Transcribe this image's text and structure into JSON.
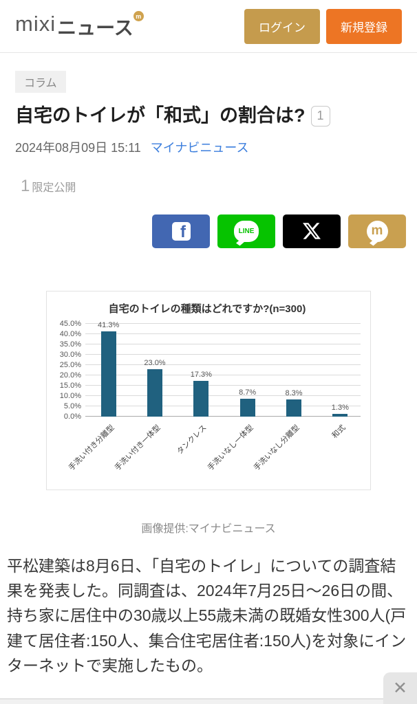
{
  "header": {
    "logo_mixi": "mixi",
    "logo_news": "ニュース",
    "logo_badge": "m",
    "login_label": "ログイン",
    "signup_label": "新規登録"
  },
  "article": {
    "category": "コラム",
    "title": "自宅のトイレが「和式」の割合は?",
    "title_badge": "1",
    "date": "2024年08月09日 15:11",
    "source": "マイナビニュース",
    "limited_count": "1",
    "limited_label": "限定公開",
    "caption": "画像提供:マイナビニュース",
    "body": "平松建築は8月6日、「自宅のトイレ」についての調査結果を発表した。同調査は、2024年7月25日〜26日の間、持ち家に居住中の30歳以上55歳未満の既婚女性300人(戸建て居住者:150人、集合住宅居住者:150人)を対象にインターネットで実施したもの。"
  },
  "share": {
    "facebook_icon": "f",
    "line_icon": "LINE",
    "x_icon": "X",
    "mixi_icon": "m"
  },
  "chart_data": {
    "type": "bar",
    "title": "自宅のトイレの種類はどれですか?(n=300)",
    "categories": [
      "手洗い付き分離型",
      "手洗い付き一体型",
      "タンクレス",
      "手洗いなし一体型",
      "手洗いなし分離型",
      "和式"
    ],
    "values": [
      41.3,
      23.0,
      17.3,
      8.7,
      8.3,
      1.3
    ],
    "value_labels": [
      "41.3%",
      "23.0%",
      "17.3%",
      "8.7%",
      "8.3%",
      "1.3%"
    ],
    "y_ticks": [
      45,
      40,
      35,
      30,
      25,
      20,
      15,
      10,
      5,
      0
    ],
    "y_tick_labels": [
      "45.0%",
      "40.0%",
      "35.0%",
      "30.0%",
      "25.0%",
      "20.0%",
      "15.0%",
      "10.0%",
      "5.0%",
      "0.0%"
    ],
    "ylim": [
      0,
      45
    ],
    "grid": true,
    "bar_color": "#20617f",
    "xlabel": "",
    "ylabel": ""
  },
  "overlay": {
    "close_label": "✕"
  },
  "colors": {
    "login_button": "#c59b4d",
    "signup_button": "#ed7524",
    "facebook": "#4267b2",
    "line": "#06c300",
    "x": "#000000",
    "mixi_gold": "#c9a050",
    "source_link": "#3b7edd",
    "bar": "#20617f"
  }
}
